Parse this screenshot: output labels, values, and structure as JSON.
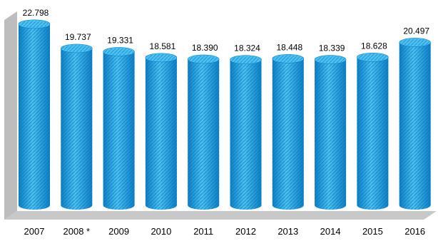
{
  "chart_data": {
    "type": "bar",
    "style": "3d-cylinder",
    "title": "",
    "xlabel": "",
    "ylabel": "",
    "categories": [
      "2007",
      "2008 *",
      "2009",
      "2010",
      "2011",
      "2012",
      "2013",
      "2014",
      "2015",
      "2016"
    ],
    "values": [
      22.798,
      19.737,
      19.331,
      18.581,
      18.39,
      18.324,
      18.448,
      18.339,
      18.628,
      20.497
    ],
    "value_labels": [
      "22.798",
      "19.737",
      "19.331",
      "18.581",
      "18.390",
      "18.324",
      "18.448",
      "18.339",
      "18.628",
      "20.497"
    ],
    "ylim": [
      0,
      23.5
    ],
    "grid": false,
    "legend": "none",
    "colors": {
      "bar": "#1fa3e8",
      "bar_light": "#4cc3f4",
      "bar_dark": "#0b7fc6",
      "hatch": "#0a6fae",
      "floor": "#c8c8c8",
      "wall": "#bdbdbd"
    }
  }
}
